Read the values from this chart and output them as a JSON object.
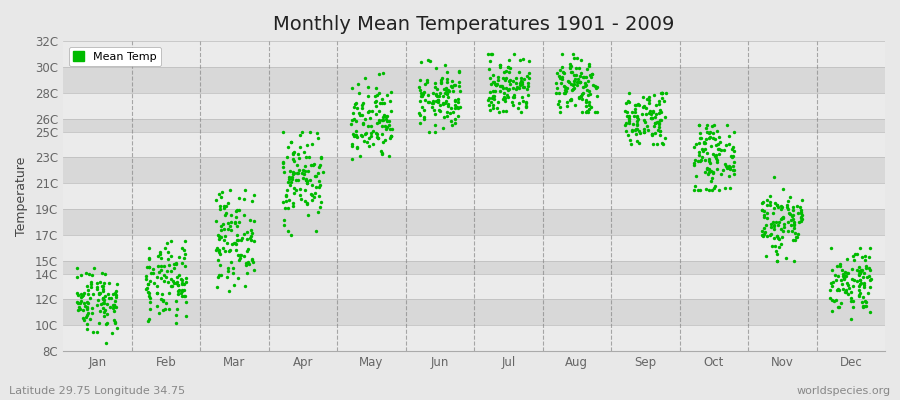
{
  "title": "Monthly Mean Temperatures 1901 - 2009",
  "ylabel": "Temperature",
  "subtitle": "Latitude 29.75 Longitude 34.75",
  "watermark": "worldspecies.org",
  "legend_label": "Mean Temp",
  "dot_color": "#00bb00",
  "dot_size": 6,
  "background_color": "#e8e8e8",
  "plot_bg_light": "#ebebeb",
  "plot_bg_dark": "#d8d8d8",
  "ytick_labels": [
    "8C",
    "10C",
    "12C",
    "14C",
    "15C",
    "17C",
    "19C",
    "21C",
    "23C",
    "25C",
    "26C",
    "28C",
    "30C",
    "32C"
  ],
  "ytick_values": [
    8,
    10,
    12,
    14,
    15,
    17,
    19,
    21,
    23,
    25,
    26,
    28,
    30,
    32
  ],
  "months": [
    "Jan",
    "Feb",
    "Mar",
    "Apr",
    "May",
    "Jun",
    "Jul",
    "Aug",
    "Sep",
    "Oct",
    "Nov",
    "Dec"
  ],
  "month_means": [
    12.0,
    13.2,
    16.8,
    21.5,
    25.5,
    27.5,
    28.5,
    28.5,
    26.0,
    23.0,
    18.0,
    13.5
  ],
  "month_stds": [
    1.3,
    1.5,
    1.8,
    1.8,
    1.6,
    1.2,
    1.2,
    1.2,
    1.2,
    1.3,
    1.4,
    1.3
  ],
  "month_mins": [
    8.5,
    9.0,
    12.5,
    17.0,
    21.5,
    25.0,
    26.5,
    26.5,
    24.0,
    20.5,
    15.0,
    10.5
  ],
  "month_maxs": [
    15.0,
    16.5,
    20.5,
    25.0,
    29.5,
    30.5,
    31.0,
    31.0,
    28.0,
    25.5,
    21.5,
    16.0
  ],
  "n_years": 109,
  "ylim_min": 8,
  "ylim_max": 32,
  "grid_color": "#bbbbbb",
  "dashed_line_color": "#888888",
  "title_fontsize": 14,
  "axis_label_fontsize": 9,
  "tick_label_fontsize": 8.5,
  "subtitle_fontsize": 8,
  "watermark_fontsize": 8
}
